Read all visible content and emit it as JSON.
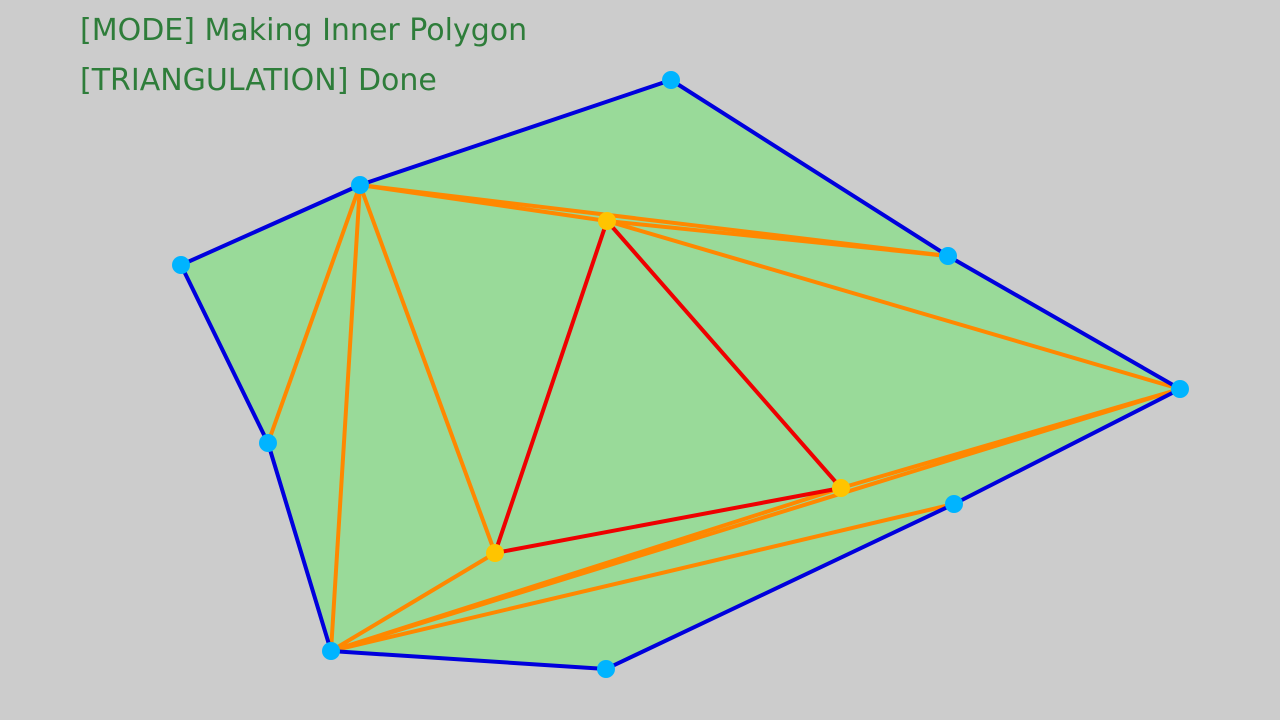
{
  "status": {
    "mode_text": "[MODE] Making Inner Polygon",
    "triangulation_text": "[TRIANGULATION] Done"
  },
  "colors": {
    "background": "#cccccc",
    "status_text": "#2e7d3a",
    "polygon_fill": "#99da99",
    "outer_edge": "#0000dd",
    "triangulation_edge": "#ff8800",
    "inner_edge": "#ee0000",
    "outer_vertex": "#00b4ff",
    "inner_vertex": "#ffc400"
  }
}
